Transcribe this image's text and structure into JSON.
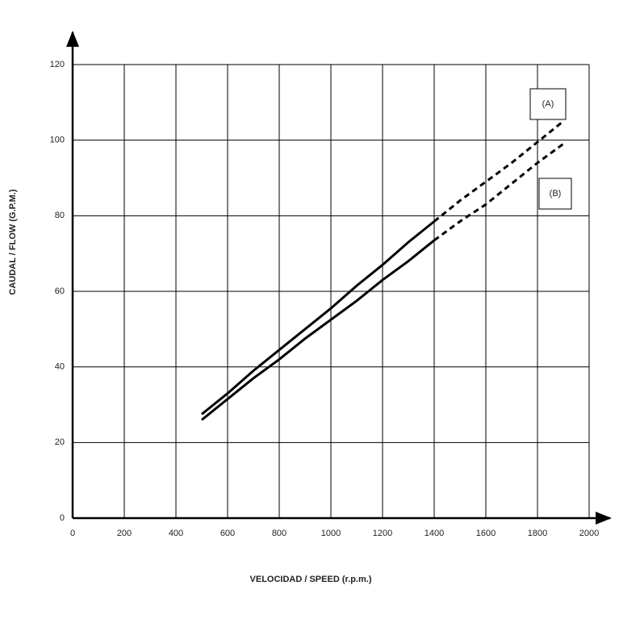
{
  "chart_data": {
    "type": "line",
    "x_label": "VELOCIDAD / SPEED  (r.p.m.)",
    "y_label": "CAUDAL / FLOW (G.P.M.)",
    "x": [
      500,
      600,
      700,
      800,
      900,
      1000,
      1100,
      1200,
      1300,
      1400,
      1500,
      1600,
      1700,
      1800,
      1900
    ],
    "series": [
      {
        "name": "(A)",
        "color": "#000000",
        "values": [
          27.5,
          33,
          39,
          44.5,
          50,
          55.5,
          61.5,
          67,
          73,
          78.5,
          84,
          89,
          94,
          99.5,
          105
        ]
      },
      {
        "name": "(B)",
        "color": "#000000",
        "values": [
          26,
          31.5,
          37,
          42,
          47.5,
          52.5,
          57.5,
          63,
          68,
          73.5,
          78.5,
          83,
          88.5,
          94,
          99
        ]
      }
    ],
    "dashed_after_x": 1400,
    "xlim": [
      0,
      2000
    ],
    "xticks": [
      0,
      200,
      400,
      600,
      800,
      1000,
      1200,
      1400,
      1600,
      1800,
      2000
    ],
    "ylim": [
      0,
      120
    ],
    "yticks": [
      0,
      20,
      40,
      60,
      80,
      100,
      120
    ],
    "grid": true
  }
}
